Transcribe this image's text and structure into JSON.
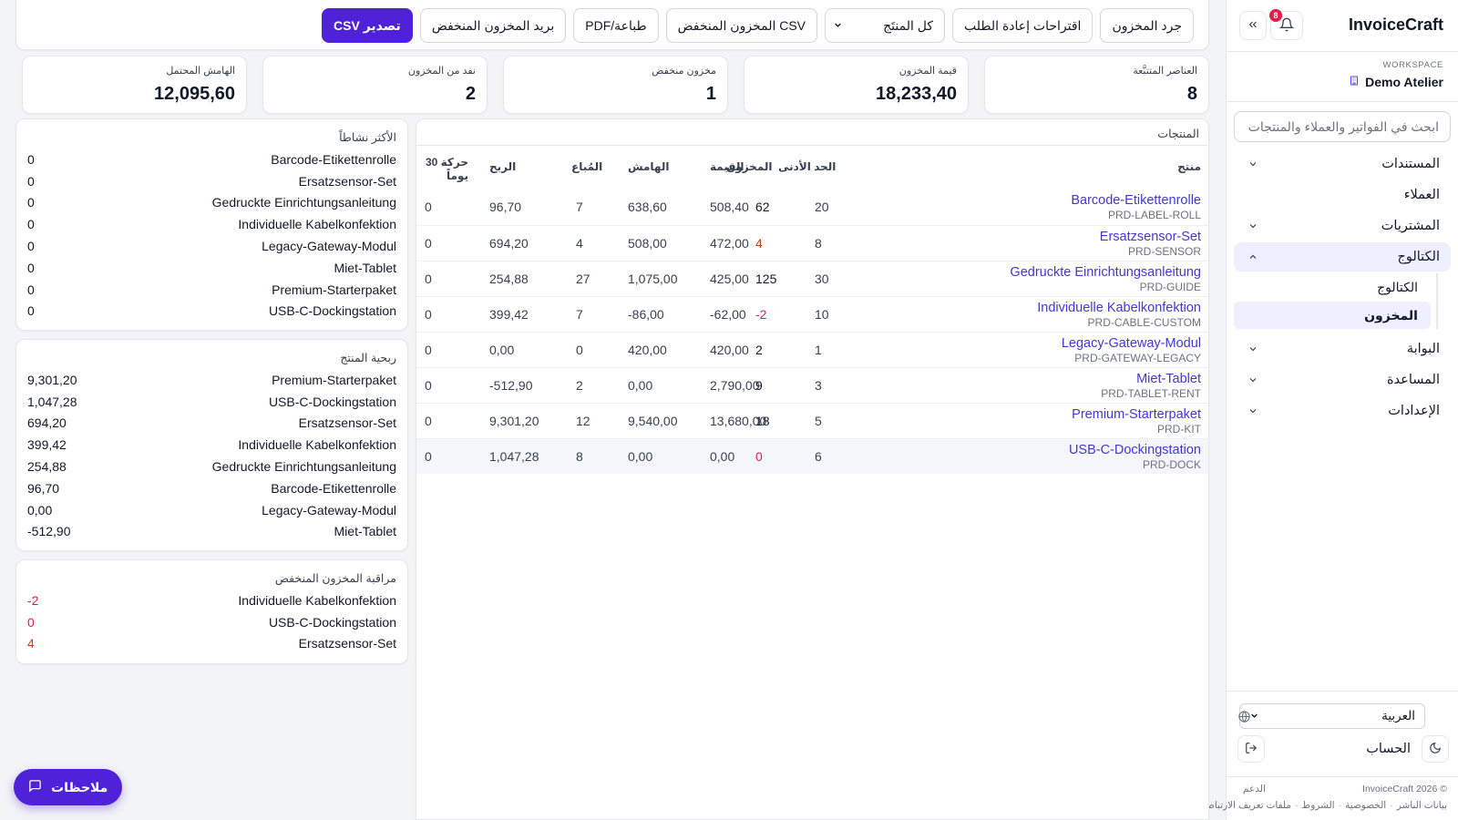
{
  "sidebar": {
    "brand": "InvoiceCraft",
    "notifications_count": "8",
    "workspace_label": "WORKSPACE",
    "workspace_name": "Demo Atelier",
    "search_placeholder": "ابحث في الفواتير والعملاء والمنتجات",
    "nav": [
      {
        "label": "المستندات",
        "expanded": false
      },
      {
        "label": "العملاء",
        "expanded": null
      },
      {
        "label": "المشتريات",
        "expanded": false
      },
      {
        "label": "الكتالوج",
        "expanded": true
      },
      {
        "label": "البوابة",
        "expanded": false
      },
      {
        "label": "المساعدة",
        "expanded": false
      },
      {
        "label": "الإعدادات",
        "expanded": false
      }
    ],
    "catalog_sub": [
      {
        "label": "الكتالوج",
        "active": false
      },
      {
        "label": "المخزون",
        "active": true
      }
    ],
    "language": "العربية",
    "account": "الحساب",
    "footer": {
      "copyright": "© InvoiceCraft 2026",
      "support": "الدعم",
      "links": [
        "بيانات الناشر",
        "الخصوصية",
        "الشروط",
        "ملفات تعريف الارتباط"
      ]
    }
  },
  "toolbar": {
    "inventory_count": "جرد المخزون",
    "reorder_suggestions": "اقتراحات إعادة الطلب",
    "product_filter": "كل المنتَج",
    "low_stock_csv": "CSV المخزون المنخفض",
    "print_pdf": "طباعة/PDF",
    "low_stock_email": "بريد المخزون المنخفض",
    "export_csv": "تصدير CSV"
  },
  "kpis": [
    {
      "label": "العناصر المتتبَّعة",
      "value": "8"
    },
    {
      "label": "قيمة المخزون",
      "value": "18,233,40"
    },
    {
      "label": "مخزون منخفض",
      "value": "1"
    },
    {
      "label": "نفد من المخزون",
      "value": "2"
    },
    {
      "label": "الهامش المحتمل",
      "value": "12,095,60"
    }
  ],
  "products": {
    "title": "المنتجات",
    "columns": {
      "product": "منتج",
      "stock": "المخزون",
      "min": "الحد الأدنى",
      "value": "القيمة",
      "margin": "الهامش",
      "sold": "المُباع",
      "profit": "الربح",
      "move_line1": "حركة 30",
      "move_line2": "يوماً"
    },
    "rows": [
      {
        "name": "Barcode-Etikettenrolle",
        "sku": "PRD-LABEL-ROLL",
        "stock": "62",
        "stock_status": "ok",
        "min": "20",
        "value": "508,40",
        "margin": "638,60",
        "sold": "7",
        "profit": "96,70",
        "move": "0"
      },
      {
        "name": "Ersatzsensor-Set",
        "sku": "PRD-SENSOR",
        "stock": "4",
        "stock_status": "low",
        "min": "8",
        "value": "472,00",
        "margin": "508,00",
        "sold": "4",
        "profit": "694,20",
        "move": "0"
      },
      {
        "name": "Gedruckte Einrichtungsanleitung",
        "sku": "PRD-GUIDE",
        "stock": "125",
        "stock_status": "ok",
        "min": "30",
        "value": "425,00",
        "margin": "1,075,00",
        "sold": "27",
        "profit": "254,88",
        "move": "0"
      },
      {
        "name": "Individuelle Kabelkonfektion",
        "sku": "PRD-CABLE-CUSTOM",
        "stock": "2-",
        "stock_status": "out",
        "min": "10",
        "value": "62,00-",
        "margin": "86,00-",
        "sold": "7",
        "profit": "399,42",
        "move": "0"
      },
      {
        "name": "Legacy-Gateway-Modul",
        "sku": "PRD-GATEWAY-LEGACY",
        "stock": "2",
        "stock_status": "ok",
        "min": "1",
        "value": "420,00",
        "margin": "420,00",
        "sold": "0",
        "profit": "0,00",
        "move": "0"
      },
      {
        "name": "Miet-Tablet",
        "sku": "PRD-TABLET-RENT",
        "stock": "9",
        "stock_status": "ok",
        "min": "3",
        "value": "2,790,00",
        "margin": "0,00",
        "sold": "2",
        "profit": "512,90-",
        "move": "0"
      },
      {
        "name": "Premium-Starterpaket",
        "sku": "PRD-KIT",
        "stock": "18",
        "stock_status": "ok",
        "min": "5",
        "value": "13,680,00",
        "margin": "9,540,00",
        "sold": "12",
        "profit": "9,301,20",
        "move": "0"
      },
      {
        "name": "USB-C-Dockingstation",
        "sku": "PRD-DOCK",
        "stock": "0",
        "stock_status": "out",
        "min": "6",
        "value": "0,00",
        "margin": "0,00",
        "sold": "8",
        "profit": "1,047,28",
        "move": "0"
      }
    ]
  },
  "most_active": {
    "title": "الأكثر نشاطاً",
    "items": [
      {
        "name": "Barcode-Etikettenrolle",
        "value": "0"
      },
      {
        "name": "Ersatzsensor-Set",
        "value": "0"
      },
      {
        "name": "Gedruckte Einrichtungsanleitung",
        "value": "0"
      },
      {
        "name": "Individuelle Kabelkonfektion",
        "value": "0"
      },
      {
        "name": "Legacy-Gateway-Modul",
        "value": "0"
      },
      {
        "name": "Miet-Tablet",
        "value": "0"
      },
      {
        "name": "Premium-Starterpaket",
        "value": "0"
      },
      {
        "name": "USB-C-Dockingstation",
        "value": "0"
      }
    ]
  },
  "profitability": {
    "title": "ربحية المنتج",
    "items": [
      {
        "name": "Premium-Starterpaket",
        "value": "9,301,20"
      },
      {
        "name": "USB-C-Dockingstation",
        "value": "1,047,28"
      },
      {
        "name": "Ersatzsensor-Set",
        "value": "694,20"
      },
      {
        "name": "Individuelle Kabelkonfektion",
        "value": "399,42"
      },
      {
        "name": "Gedruckte Einrichtungsanleitung",
        "value": "254,88"
      },
      {
        "name": "Barcode-Etikettenrolle",
        "value": "96,70"
      },
      {
        "name": "Legacy-Gateway-Modul",
        "value": "0,00"
      },
      {
        "name": "Miet-Tablet",
        "value": "512,90-"
      }
    ]
  },
  "low_stock_watch": {
    "title": "مراقبة المخزون المنخفض",
    "items": [
      {
        "name": "Individuelle Kabelkonfektion",
        "value": "2-",
        "status": "out"
      },
      {
        "name": "USB-C-Dockingstation",
        "value": "0",
        "status": "out"
      },
      {
        "name": "Ersatzsensor-Set",
        "value": "4",
        "status": "low"
      }
    ]
  },
  "feedback_label": "ملاحظات",
  "colors": {
    "accent": "#4f22d9",
    "link": "#4338ca",
    "danger": "#e11d48",
    "warning": "#c2410c"
  }
}
